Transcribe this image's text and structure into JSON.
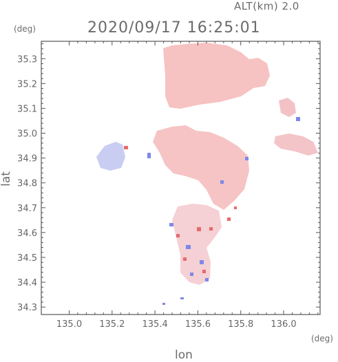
{
  "header": {
    "altitude_label": "ALT(km) 2.0",
    "timestamp": "2020/09/17 16:25:01",
    "lat_unit": "(deg)",
    "lon_unit": "(deg)"
  },
  "axes": {
    "ylabel": "lat",
    "xlabel": "lon",
    "y_ticks": [
      "35.3",
      "35.2",
      "35.1",
      "35.0",
      "34.9",
      "34.8",
      "34.7",
      "34.6",
      "34.5",
      "34.4",
      "34.3"
    ],
    "x_ticks": [
      "135.0",
      "135.2",
      "135.4",
      "135.6",
      "135.8",
      "136.0"
    ],
    "lat_range": [
      34.27,
      35.37
    ],
    "lon_range": [
      134.87,
      136.17
    ]
  },
  "colors": {
    "positive": "#f4b4b4",
    "negative": "#c8cdf4",
    "strong_positive": "#e86a6a",
    "strong_negative": "#6c78e6",
    "frame": "#555555"
  }
}
